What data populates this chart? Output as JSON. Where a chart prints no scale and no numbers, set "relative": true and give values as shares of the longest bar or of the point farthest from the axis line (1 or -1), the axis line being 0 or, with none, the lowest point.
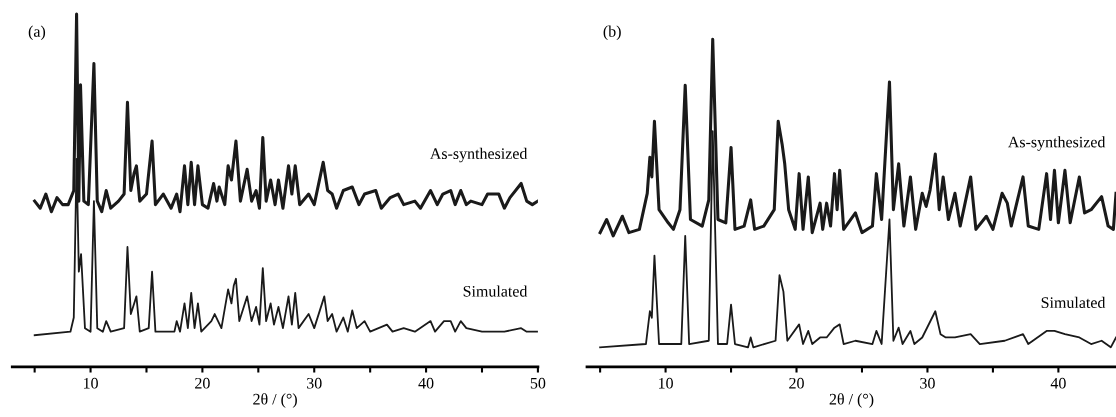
{
  "chart_data": [
    {
      "type": "line",
      "title": "(a)",
      "xlabel": "2θ / (°)",
      "relative": true,
      "tick_labels": "x",
      "legend": false,
      "grid": false,
      "xlim": [
        3,
        50
      ],
      "xticks": [
        {
          "value": 5,
          "label": null
        },
        10,
        {
          "value": 15,
          "label": null
        },
        20,
        {
          "value": 25,
          "label": null
        },
        30,
        {
          "value": 35,
          "label": null
        },
        40,
        {
          "value": 45,
          "label": null
        },
        50
      ],
      "series": [
        {
          "name": "As-synthesized",
          "color": "#1a1a1a",
          "x": [
            5,
            5.5,
            6,
            6.5,
            7,
            7.5,
            8,
            8.5,
            8.75,
            8.95,
            9.1,
            9.4,
            9.8,
            10.3,
            10.6,
            11,
            11.4,
            11.8,
            12.5,
            13,
            13.3,
            13.6,
            13.9,
            14.1,
            14.4,
            15,
            15.5,
            15.8,
            16.5,
            17.2,
            17.7,
            18,
            18.4,
            18.7,
            19,
            19.3,
            19.6,
            20,
            20.5,
            21,
            21.3,
            21.5,
            22,
            22.3,
            22.6,
            23,
            23.4,
            24,
            24.4,
            24.8,
            25.1,
            25.4,
            25.7,
            26.1,
            26.5,
            26.8,
            27.2,
            27.7,
            28,
            28.3,
            28.7,
            29.5,
            30,
            30.8,
            31.2,
            31.6,
            32,
            32.6,
            33.4,
            34,
            34.5,
            35.5,
            36,
            36.8,
            37.5,
            38,
            39,
            39.5,
            40.4,
            41,
            41.5,
            42.2,
            42.6,
            43.1,
            43.6,
            44,
            45,
            45.5,
            46.5,
            47,
            47.5,
            48.5,
            49,
            49.5,
            50
          ],
          "values": [
            0.47,
            0.45,
            0.49,
            0.44,
            0.48,
            0.46,
            0.46,
            0.5,
            1.0,
            0.47,
            0.8,
            0.47,
            0.46,
            0.86,
            0.47,
            0.44,
            0.5,
            0.45,
            0.47,
            0.49,
            0.75,
            0.5,
            0.55,
            0.57,
            0.47,
            0.49,
            0.64,
            0.46,
            0.49,
            0.45,
            0.49,
            0.44,
            0.57,
            0.46,
            0.58,
            0.46,
            0.57,
            0.46,
            0.45,
            0.52,
            0.47,
            0.51,
            0.46,
            0.57,
            0.53,
            0.64,
            0.47,
            0.56,
            0.47,
            0.5,
            0.45,
            0.65,
            0.47,
            0.53,
            0.46,
            0.53,
            0.45,
            0.57,
            0.49,
            0.57,
            0.46,
            0.49,
            0.46,
            0.58,
            0.5,
            0.49,
            0.45,
            0.5,
            0.51,
            0.46,
            0.49,
            0.5,
            0.45,
            0.48,
            0.49,
            0.46,
            0.47,
            0.45,
            0.5,
            0.46,
            0.49,
            0.5,
            0.46,
            0.5,
            0.46,
            0.47,
            0.46,
            0.49,
            0.49,
            0.45,
            0.48,
            0.52,
            0.47,
            0.46,
            0.47
          ]
        },
        {
          "name": "Simulated",
          "color": "#1a1a1a",
          "x": [
            5,
            8.2,
            8.5,
            8.75,
            8.95,
            9.15,
            9.5,
            10,
            10.3,
            10.6,
            11.1,
            11.4,
            11.8,
            13,
            13.3,
            13.6,
            13.9,
            14.1,
            14.4,
            15.2,
            15.5,
            15.8,
            17.5,
            17.7,
            18,
            18.4,
            18.7,
            19,
            19.3,
            19.6,
            19.9,
            20.8,
            21.1,
            21.4,
            21.7,
            22.3,
            22.6,
            22.8,
            23,
            23.3,
            24,
            24.4,
            24.8,
            25.1,
            25.4,
            25.7,
            26.1,
            26.4,
            26.8,
            27.2,
            27.7,
            28,
            28.3,
            28.6,
            29.5,
            30,
            30.9,
            31.2,
            31.6,
            32,
            32.6,
            33,
            33.4,
            33.8,
            34.5,
            35,
            36.5,
            37,
            38,
            39,
            40.4,
            40.8,
            41.6,
            42.2,
            42.6,
            43.1,
            43.6,
            45,
            47,
            48.5,
            49,
            49.5,
            50
          ],
          "values": [
            0.09,
            0.1,
            0.14,
            0.59,
            0.27,
            0.32,
            0.11,
            0.1,
            0.47,
            0.11,
            0.1,
            0.13,
            0.1,
            0.11,
            0.34,
            0.15,
            0.18,
            0.2,
            0.1,
            0.11,
            0.27,
            0.1,
            0.1,
            0.13,
            0.1,
            0.18,
            0.11,
            0.21,
            0.11,
            0.18,
            0.1,
            0.13,
            0.15,
            0.13,
            0.11,
            0.22,
            0.18,
            0.23,
            0.25,
            0.13,
            0.2,
            0.13,
            0.17,
            0.12,
            0.28,
            0.13,
            0.18,
            0.12,
            0.17,
            0.11,
            0.2,
            0.12,
            0.21,
            0.11,
            0.15,
            0.11,
            0.2,
            0.13,
            0.15,
            0.1,
            0.14,
            0.1,
            0.16,
            0.11,
            0.13,
            0.1,
            0.12,
            0.1,
            0.11,
            0.1,
            0.13,
            0.1,
            0.13,
            0.13,
            0.1,
            0.13,
            0.11,
            0.1,
            0.1,
            0.11,
            0.1,
            0.1,
            0.1
          ]
        }
      ]
    },
    {
      "type": "line",
      "title": "(b)",
      "xlabel": "2θ / (°)",
      "relative": true,
      "tick_labels": "x",
      "legend": false,
      "grid": false,
      "xlim": [
        4,
        44.4
      ],
      "xticks": [
        {
          "value": 5,
          "label": null
        },
        10,
        {
          "value": 15,
          "label": null
        },
        20,
        {
          "value": 25,
          "label": null
        },
        30,
        {
          "value": 35,
          "label": null
        },
        40
      ],
      "series": [
        {
          "name": "As-synthesized",
          "color": "#1a1a1a",
          "x": [
            5,
            5.5,
            6,
            6.7,
            7.2,
            8,
            8.6,
            8.8,
            8.95,
            9.15,
            9.5,
            10.2,
            10.6,
            11.1,
            11.5,
            11.9,
            12.8,
            13.3,
            13.6,
            14,
            14.6,
            15,
            15.3,
            16,
            16.5,
            16.8,
            17.5,
            18.3,
            18.6,
            18.9,
            19.1,
            19.4,
            19.9,
            20.2,
            20.5,
            20.9,
            21.2,
            21.8,
            22,
            22.3,
            22.6,
            22.9,
            23.1,
            23.3,
            23.6,
            24.5,
            25,
            25.8,
            26.1,
            26.5,
            27.1,
            27.4,
            27.8,
            28.2,
            28.7,
            29.1,
            29.6,
            29.9,
            30.2,
            30.6,
            30.9,
            31.2,
            31.6,
            32.1,
            32.5,
            33.3,
            33.7,
            34.5,
            35,
            35.7,
            36.1,
            36.4,
            37.3,
            37.7,
            38.5,
            39.1,
            39.4,
            39.7,
            40,
            40.5,
            40.9,
            41.6,
            42,
            42.5,
            43.3,
            43.8,
            44.2,
            44.4
          ],
          "values": [
            0.41,
            0.45,
            0.4,
            0.46,
            0.41,
            0.42,
            0.53,
            0.64,
            0.58,
            0.75,
            0.48,
            0.44,
            0.42,
            0.48,
            0.86,
            0.45,
            0.43,
            0.51,
            1.0,
            0.45,
            0.44,
            0.67,
            0.42,
            0.43,
            0.51,
            0.42,
            0.43,
            0.48,
            0.75,
            0.68,
            0.62,
            0.48,
            0.42,
            0.59,
            0.42,
            0.58,
            0.41,
            0.5,
            0.42,
            0.5,
            0.43,
            0.59,
            0.48,
            0.6,
            0.42,
            0.47,
            0.41,
            0.43,
            0.59,
            0.45,
            0.87,
            0.48,
            0.62,
            0.43,
            0.58,
            0.42,
            0.53,
            0.49,
            0.54,
            0.65,
            0.48,
            0.58,
            0.45,
            0.53,
            0.43,
            0.58,
            0.42,
            0.46,
            0.42,
            0.53,
            0.5,
            0.43,
            0.58,
            0.43,
            0.42,
            0.59,
            0.45,
            0.6,
            0.44,
            0.6,
            0.44,
            0.58,
            0.47,
            0.48,
            0.52,
            0.43,
            0.42,
            0.53
          ]
        },
        {
          "name": "Simulated",
          "color": "#1a1a1a",
          "x": [
            5,
            8.5,
            8.8,
            8.95,
            9.15,
            9.5,
            11.2,
            11.5,
            11.8,
            13.3,
            13.6,
            14,
            14.7,
            15,
            15.3,
            16.3,
            16.5,
            16.7,
            18.4,
            18.7,
            19,
            19.3,
            20.2,
            20.5,
            20.9,
            21.2,
            21.8,
            22.3,
            22.9,
            23.3,
            23.6,
            24.5,
            25.8,
            26.1,
            26.5,
            27.1,
            27.4,
            27.8,
            28.1,
            28.7,
            29,
            29.6,
            30.6,
            31,
            31.4,
            32.1,
            33.3,
            34,
            35.9,
            37.3,
            37.7,
            39.1,
            39.7,
            40.5,
            41.6,
            42.5,
            43.3,
            44,
            44.4
          ],
          "values": [
            0.06,
            0.07,
            0.17,
            0.15,
            0.34,
            0.07,
            0.07,
            0.4,
            0.07,
            0.08,
            0.72,
            0.07,
            0.07,
            0.19,
            0.07,
            0.06,
            0.09,
            0.06,
            0.08,
            0.28,
            0.23,
            0.08,
            0.13,
            0.07,
            0.11,
            0.07,
            0.09,
            0.09,
            0.12,
            0.13,
            0.07,
            0.08,
            0.07,
            0.11,
            0.07,
            0.45,
            0.08,
            0.12,
            0.07,
            0.11,
            0.07,
            0.09,
            0.17,
            0.1,
            0.09,
            0.09,
            0.1,
            0.07,
            0.08,
            0.1,
            0.07,
            0.11,
            0.11,
            0.1,
            0.09,
            0.07,
            0.08,
            0.06,
            0.09
          ]
        }
      ]
    }
  ]
}
